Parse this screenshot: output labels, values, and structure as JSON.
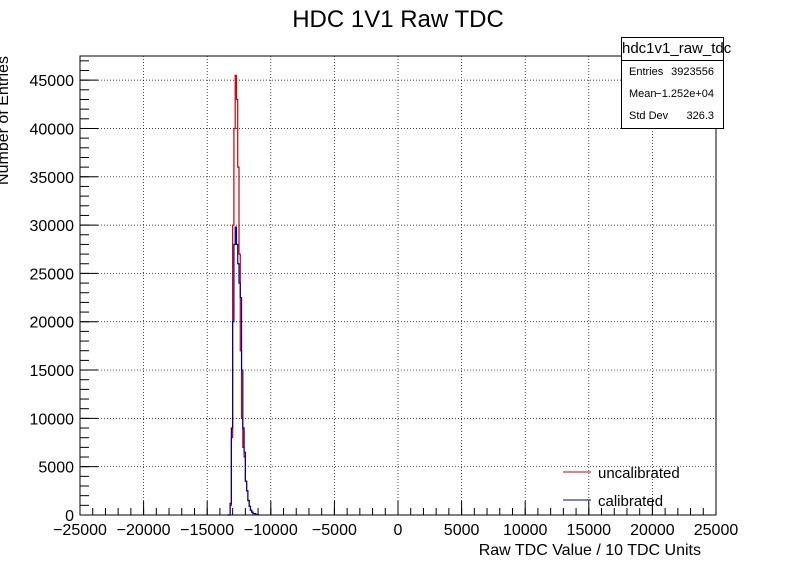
{
  "chart_data": {
    "type": "line",
    "title": "HDC 1V1 Raw TDC",
    "xlabel": "Raw TDC Value / 10 TDC Units",
    "ylabel": "Number of Entries",
    "xlim": [
      -25000,
      25000
    ],
    "ylim": [
      0,
      47500
    ],
    "xticks": [
      -25000,
      -20000,
      -15000,
      -10000,
      -5000,
      0,
      5000,
      10000,
      15000,
      20000,
      25000
    ],
    "xtick_labels": [
      "−25000",
      "−20000",
      "−15000",
      "−10000",
      "−5000",
      "0",
      "5000",
      "10000",
      "15000",
      "20000",
      "25000"
    ],
    "yticks": [
      0,
      5000,
      10000,
      15000,
      20000,
      25000,
      30000,
      35000,
      40000,
      45000
    ],
    "ytick_labels": [
      "0",
      "5000",
      "10000",
      "15000",
      "20000",
      "25000",
      "30000",
      "35000",
      "40000",
      "45000"
    ],
    "grid": true,
    "legend_position": "bottom-right",
    "series": [
      {
        "name": "uncalibrated",
        "color": "#cc0000",
        "x": [
          -13400,
          -13200,
          -13100,
          -13000,
          -12900,
          -12800,
          -12700,
          -12600,
          -12500,
          -12400,
          -12300,
          -12200,
          -12100,
          -12000,
          -11900,
          -11800,
          -11700,
          -11600,
          -11500,
          -11400,
          -11200,
          -11000
        ],
        "y": [
          0,
          1000,
          8000,
          30000,
          40000,
          45500,
          43000,
          36000,
          27000,
          17000,
          10000,
          7000,
          6000,
          3500,
          2500,
          1500,
          900,
          500,
          300,
          150,
          50,
          0
        ]
      },
      {
        "name": "calibrated",
        "color": "#000099",
        "x": [
          -13400,
          -13200,
          -13100,
          -13000,
          -12900,
          -12800,
          -12700,
          -12600,
          -12500,
          -12400,
          -12300,
          -12200,
          -12100,
          -12000,
          -11900,
          -11800,
          -11700,
          -11600,
          -11500,
          -11400,
          -11200,
          -11000
        ],
        "y": [
          0,
          1200,
          9000,
          20000,
          28000,
          29800,
          28000,
          26000,
          24000,
          22500,
          15000,
          9000,
          6500,
          3500,
          2500,
          1500,
          900,
          500,
          300,
          150,
          50,
          0
        ]
      }
    ]
  },
  "stats": {
    "name": "hdc1v1_raw_tdc",
    "rows": [
      {
        "key": "Entries",
        "value": "3923556"
      },
      {
        "key": "Mean",
        "value": "−1.252e+04"
      },
      {
        "key": "Std Dev",
        "value": "326.3"
      }
    ]
  }
}
